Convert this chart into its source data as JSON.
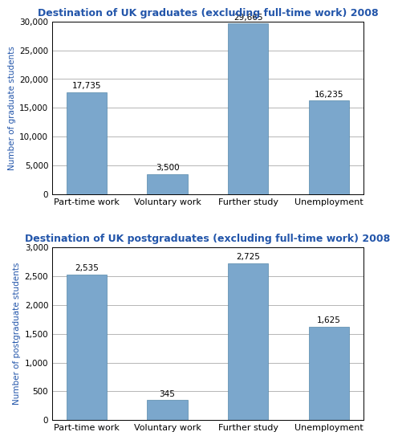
{
  "graduate": {
    "title": "Destination of UK graduates (excluding full-time work) 2008",
    "categories": [
      "Part-time work",
      "Voluntary work",
      "Further study",
      "Unemployment"
    ],
    "values": [
      17735,
      3500,
      29665,
      16235
    ],
    "labels": [
      "17,735",
      "3,500",
      "29,665",
      "16,235"
    ],
    "ylabel": "Number of graduate students",
    "ylim": [
      0,
      30000
    ],
    "yticks": [
      0,
      5000,
      10000,
      15000,
      20000,
      25000,
      30000
    ],
    "ytick_labels": [
      "0",
      "5,000",
      "10,000",
      "15,000",
      "20,000",
      "25,000",
      "30,000"
    ]
  },
  "postgraduate": {
    "title": "Destination of UK postgraduates (excluding full-time work) 2008",
    "categories": [
      "Part-time work",
      "Voluntary work",
      "Further study",
      "Unemployment"
    ],
    "values": [
      2535,
      345,
      2725,
      1625
    ],
    "labels": [
      "2,535",
      "345",
      "2,725",
      "1,625"
    ],
    "ylabel": "Number of postgraduate students",
    "ylim": [
      0,
      3000
    ],
    "yticks": [
      0,
      500,
      1000,
      1500,
      2000,
      2500,
      3000
    ],
    "ytick_labels": [
      "0",
      "500",
      "1,000",
      "1,500",
      "2,000",
      "2,500",
      "3,000"
    ]
  },
  "bar_color": "#7ba7cc",
  "title_color": "#2255aa",
  "ylabel_color": "#2255aa",
  "label_fontsize": 7.5,
  "title_fontsize": 9.0,
  "ylabel_fontsize": 7.5,
  "xtick_fontsize": 8.0,
  "ytick_fontsize": 7.5,
  "background_color": "#ffffff",
  "grid_color": "#aaaaaa",
  "bar_width": 0.5
}
